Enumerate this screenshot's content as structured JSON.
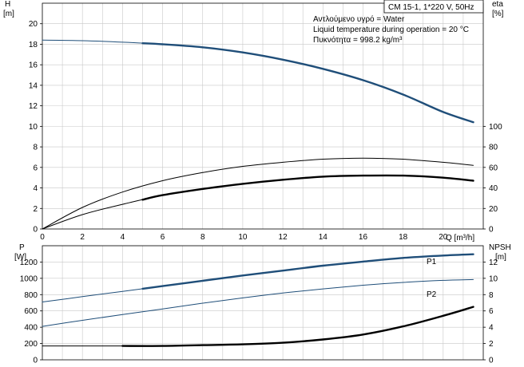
{
  "chart_data": [
    {
      "type": "line",
      "panel": "upper",
      "x_unit_label": "Q [m³/h]",
      "xlim": [
        0,
        22
      ],
      "x_ticks": [
        0,
        2,
        4,
        6,
        8,
        10,
        12,
        14,
        16,
        18,
        20
      ],
      "left_axis": {
        "name": "H",
        "unit": "[m]",
        "lim": [
          0,
          22
        ],
        "ticks": [
          0,
          2,
          4,
          6,
          8,
          10,
          12,
          14,
          16,
          18,
          20
        ]
      },
      "right_axis": {
        "name": "eta",
        "unit": "[%]",
        "lim": [
          0,
          220
        ],
        "ticks": [
          0,
          20,
          40,
          60,
          80,
          100
        ]
      },
      "grid": true,
      "title_box": "CM 15-1, 1*220 V, 50Hz",
      "info_lines": [
        "Αντλούμενο υγρό = Water",
        "Liquid temperature during operation = 20 °C",
        "Πυκνότητα = 998.2 kg/m³"
      ],
      "series": [
        {
          "axis": "left",
          "color": "#1f4e79",
          "x": [
            0,
            2,
            4,
            6,
            8,
            10,
            12,
            14,
            16,
            18,
            20,
            21.5
          ],
          "y": [
            18.4,
            18.35,
            18.2,
            18.0,
            17.7,
            17.2,
            16.5,
            15.6,
            14.5,
            13.1,
            11.4,
            10.4
          ]
        },
        {
          "axis": "right",
          "color": "#000000",
          "x": [
            0,
            2,
            4,
            6,
            8,
            10,
            12,
            14,
            16,
            18,
            20,
            21.5
          ],
          "y": [
            0,
            21,
            36,
            47,
            55,
            61,
            65,
            68,
            69,
            68,
            65,
            62
          ]
        },
        {
          "axis": "right",
          "color": "#000000",
          "x": [
            0,
            2,
            4,
            6,
            8,
            10,
            12,
            14,
            16,
            18,
            20,
            21.5
          ],
          "y": [
            0,
            14,
            24,
            33,
            39,
            44,
            48,
            51,
            52,
            52,
            50,
            47
          ],
          "bold_from": 5
        }
      ]
    },
    {
      "type": "line",
      "panel": "lower",
      "xlim": [
        0,
        22
      ],
      "left_axis": {
        "name": "P",
        "unit": "[W]",
        "lim": [
          0,
          1400
        ],
        "ticks": [
          0,
          200,
          400,
          600,
          800,
          1000,
          1200
        ]
      },
      "right_axis": {
        "name": "NPSH",
        "unit": "[m]",
        "lim": [
          0,
          14
        ],
        "ticks": [
          0,
          2,
          4,
          6,
          8,
          10,
          12
        ]
      },
      "grid": true,
      "series": [
        {
          "name": "P1",
          "axis": "left",
          "color": "#1f4e79",
          "x": [
            0,
            2,
            4,
            6,
            8,
            10,
            12,
            14,
            16,
            18,
            20,
            21.5
          ],
          "y": [
            710,
            775,
            840,
            905,
            970,
            1035,
            1095,
            1155,
            1205,
            1250,
            1280,
            1295
          ],
          "bold_from": 5
        },
        {
          "name": "P2",
          "axis": "left",
          "color": "#1f4e79",
          "x": [
            0,
            2,
            4,
            6,
            8,
            10,
            12,
            14,
            16,
            18,
            20,
            21.5
          ],
          "y": [
            410,
            485,
            555,
            625,
            695,
            760,
            820,
            870,
            915,
            950,
            975,
            985
          ]
        },
        {
          "axis": "right",
          "color": "#000000",
          "x": [
            0,
            2,
            4,
            6,
            8,
            10,
            12,
            14,
            16,
            18,
            20,
            21.5
          ],
          "y": [
            1.7,
            1.7,
            1.7,
            1.7,
            1.8,
            1.9,
            2.1,
            2.5,
            3.1,
            4.1,
            5.4,
            6.5
          ],
          "bold_from": 4
        }
      ]
    }
  ]
}
